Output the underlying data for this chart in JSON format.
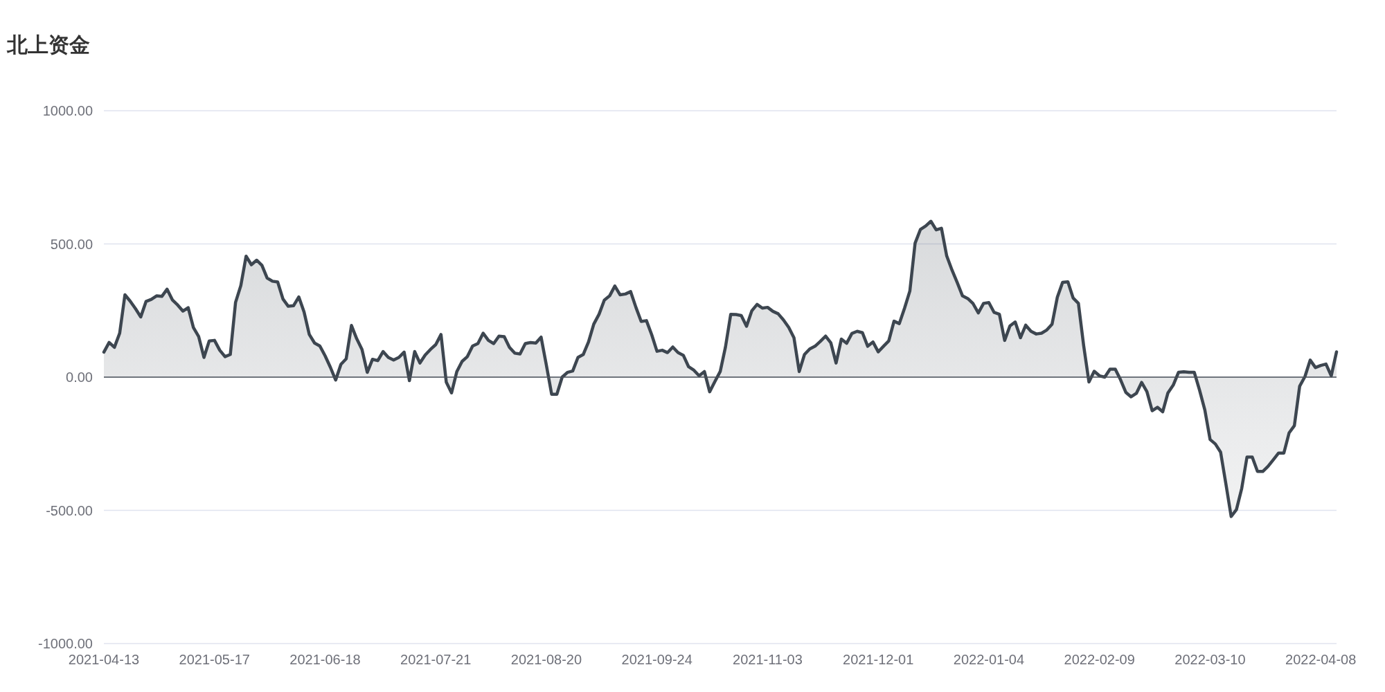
{
  "chart_data": {
    "type": "area",
    "title": "北上资金",
    "categories": [
      "2021-04-13",
      null,
      null,
      null,
      null,
      null,
      null,
      null,
      null,
      null,
      null,
      null,
      null,
      null,
      null,
      null,
      null,
      null,
      null,
      null,
      null,
      "2021-05-17",
      null,
      null,
      null,
      null,
      null,
      null,
      null,
      null,
      null,
      null,
      null,
      null,
      null,
      null,
      null,
      null,
      null,
      null,
      null,
      null,
      "2021-06-18",
      null,
      null,
      null,
      null,
      null,
      null,
      null,
      null,
      null,
      null,
      null,
      null,
      null,
      null,
      null,
      null,
      null,
      null,
      null,
      null,
      "2021-07-21",
      null,
      null,
      null,
      null,
      null,
      null,
      null,
      null,
      null,
      null,
      null,
      null,
      null,
      null,
      null,
      null,
      null,
      null,
      null,
      null,
      "2021-08-20",
      null,
      null,
      null,
      null,
      null,
      null,
      null,
      null,
      null,
      null,
      null,
      null,
      null,
      null,
      null,
      null,
      null,
      null,
      null,
      null,
      "2021-09-24",
      null,
      null,
      null,
      null,
      null,
      null,
      null,
      null,
      null,
      null,
      null,
      null,
      null,
      null,
      null,
      null,
      null,
      null,
      null,
      null,
      "2021-11-03",
      null,
      null,
      null,
      null,
      null,
      null,
      null,
      null,
      null,
      null,
      null,
      null,
      null,
      null,
      null,
      null,
      null,
      null,
      null,
      null,
      "2021-12-01",
      null,
      null,
      null,
      null,
      null,
      null,
      null,
      null,
      null,
      null,
      null,
      null,
      null,
      null,
      null,
      null,
      null,
      null,
      null,
      null,
      "2022-01-04",
      null,
      null,
      null,
      null,
      null,
      null,
      null,
      null,
      null,
      null,
      null,
      null,
      null,
      null,
      null,
      null,
      null,
      null,
      null,
      null,
      "2022-02-09",
      null,
      null,
      null,
      null,
      null,
      null,
      null,
      null,
      null,
      null,
      null,
      null,
      null,
      null,
      null,
      null,
      null,
      null,
      null,
      null,
      "2022-03-10",
      null,
      null,
      null,
      null,
      null,
      null,
      null,
      null,
      null,
      null,
      null,
      null,
      null,
      null,
      null,
      null,
      null,
      null,
      null,
      null,
      "2022-04-08",
      null,
      null,
      null
    ],
    "series": [
      {
        "color": "#3d4650",
        "values": [
          94,
          130,
          112,
          165,
          309,
          285,
          257,
          226,
          284,
          292,
          305,
          303,
          330,
          290,
          271,
          248,
          261,
          186,
          152,
          74,
          136,
          138,
          101,
          77,
          85,
          281,
          344,
          454,
          422,
          439,
          420,
          372,
          360,
          357,
          293,
          266,
          268,
          301,
          245,
          160,
          128,
          117,
          80,
          37,
          -11,
          48,
          69,
          194,
          144,
          104,
          18,
          67,
          62,
          96,
          74,
          64,
          74,
          94,
          -13,
          96,
          53,
          83,
          104,
          122,
          160,
          -19,
          -59,
          21,
          59,
          77,
          117,
          126,
          165,
          138,
          126,
          154,
          152,
          112,
          90,
          87,
          126,
          130,
          128,
          150,
          45,
          -64,
          -64,
          0,
          18,
          23,
          74,
          85,
          132,
          199,
          236,
          289,
          305,
          342,
          309,
          312,
          321,
          262,
          209,
          212,
          159,
          97,
          101,
          92,
          113,
          92,
          82,
          39,
          26,
          5,
          21,
          -55,
          -16,
          21,
          113,
          236,
          235,
          231,
          191,
          249,
          273,
          259,
          262,
          247,
          238,
          215,
          187,
          148,
          21,
          85,
          106,
          116,
          134,
          154,
          129,
          53,
          143,
          127,
          164,
          172,
          167,
          116,
          132,
          95,
          116,
          136,
          210,
          201,
          259,
          323,
          503,
          554,
          567,
          585,
          553,
          559,
          455,
          402,
          355,
          305,
          295,
          276,
          241,
          277,
          280,
          243,
          236,
          138,
          192,
          207,
          148,
          195,
          172,
          162,
          165,
          177,
          199,
          300,
          356,
          358,
          297,
          277,
          118,
          -18,
          22,
          5,
          0,
          30,
          30,
          -10,
          -57,
          -74,
          -61,
          -20,
          -54,
          -126,
          -113,
          -130,
          -59,
          -30,
          18,
          20,
          18,
          18,
          -49,
          -123,
          -234,
          -251,
          -282,
          -401,
          -523,
          -497,
          -418,
          -300,
          -300,
          -354,
          -354,
          -335,
          -310,
          -285,
          -285,
          -209,
          -182,
          -34,
          2,
          64,
          36,
          44,
          49,
          5,
          95
        ]
      }
    ],
    "ylim": [
      -1000,
      1000
    ],
    "yticks": [
      {
        "value": -1000,
        "label": "-1000.00"
      },
      {
        "value": -500,
        "label": "-500.00"
      },
      {
        "value": 0,
        "label": "0.00"
      },
      {
        "value": 500,
        "label": "500.00"
      },
      {
        "value": 1000,
        "label": "1000.00"
      }
    ],
    "grid": "y",
    "marker": "none",
    "line_style": "solid"
  }
}
